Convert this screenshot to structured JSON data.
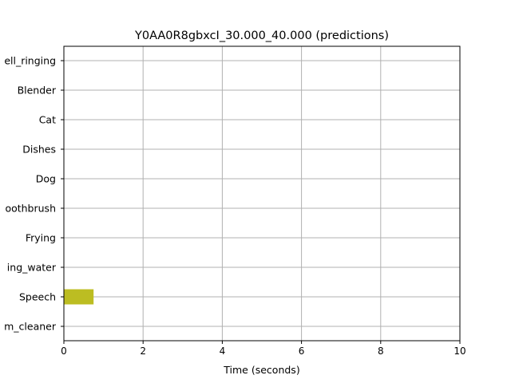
{
  "chart_data": {
    "type": "bar",
    "title": "Y0AA0R8gbxcI_30.000_40.000 (predictions)",
    "xlabel": "Time (seconds)",
    "ylabel": "",
    "xlim": [
      0,
      10
    ],
    "xticks": [
      0,
      2,
      4,
      6,
      8,
      10
    ],
    "grid": true,
    "categories_display": [
      "ell_ringing",
      "Blender",
      "Cat",
      "Dishes",
      "Dog",
      "oothbrush",
      "Frying",
      "ing_water",
      "Speech",
      "m_cleaner"
    ],
    "events": [
      {
        "category_index": 8,
        "start": 0.0,
        "end": 0.75,
        "color": "#bcbd22"
      }
    ]
  }
}
